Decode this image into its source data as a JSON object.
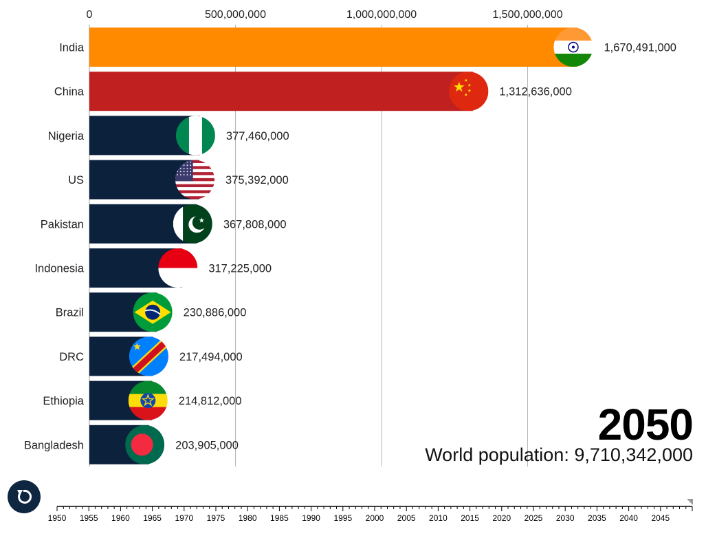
{
  "chart_data": {
    "type": "bar",
    "orientation": "horizontal",
    "year": "2050",
    "total_label": "World population: 9,710,342,000",
    "xlim": [
      0,
      1750000000
    ],
    "x_ticks": [
      {
        "value": 0,
        "label": "0"
      },
      {
        "value": 500000000,
        "label": "500,000,000"
      },
      {
        "value": 1000000000,
        "label": "1,000,000,000"
      },
      {
        "value": 1500000000,
        "label": "1,500,000,000"
      }
    ],
    "grid": true,
    "categories": [
      "India",
      "China",
      "Nigeria",
      "US",
      "Pakistan",
      "Indonesia",
      "Brazil",
      "DRC",
      "Ethiopia",
      "Bangladesh"
    ],
    "values": [
      1670491000,
      1312636000,
      377460000,
      375392000,
      367808000,
      317225000,
      230886000,
      217494000,
      214812000,
      203905000
    ],
    "value_labels": [
      "1,670,491,000",
      "1,312,636,000",
      "377,460,000",
      "375,392,000",
      "367,808,000",
      "317,225,000",
      "230,886,000",
      "217,494,000",
      "214,812,000",
      "203,905,000"
    ],
    "bar_colors": [
      "#ff8a00",
      "#c0201f",
      "#0c213c",
      "#0c213c",
      "#0c213c",
      "#0c213c",
      "#0c213c",
      "#0c213c",
      "#0c213c",
      "#0c213c"
    ],
    "flags": [
      "india-flag",
      "china-flag",
      "nigeria-flag",
      "us-flag",
      "pakistan-flag",
      "indonesia-flag",
      "brazil-flag",
      "drc-flag",
      "ethiopia-flag",
      "bangladesh-flag"
    ]
  },
  "timeline": {
    "years": [
      "1950",
      "1955",
      "1960",
      "1965",
      "1970",
      "1975",
      "1980",
      "1985",
      "1990",
      "1995",
      "2000",
      "2005",
      "2010",
      "2015",
      "2020",
      "2025",
      "2030",
      "2035",
      "2040",
      "2045"
    ],
    "current": "2050"
  },
  "controls": {
    "replay_icon": "replay-icon"
  }
}
